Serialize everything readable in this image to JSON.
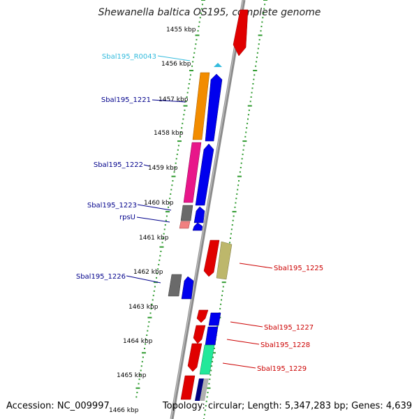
{
  "title": "Shewanella baltica OS195, complete genome",
  "footer": {
    "accession": "Accession: NC_009997",
    "summary": "Topology: circular; Length: 5,347,283 bp; Genes: 4,639"
  },
  "ruler": {
    "unit": "kbp",
    "ticks": [
      "1455 kbp",
      "1456 kbp",
      "1457 kbp",
      "1458 kbp",
      "1459 kbp",
      "1460 kbp",
      "1461 kbp",
      "1462 kbp",
      "1463 kbp",
      "1464 kbp",
      "1465 kbp",
      "1466 kbp"
    ]
  },
  "colors": {
    "backbone": "#8c8c8c",
    "dotted_guide": "#2e9a2e",
    "label_left": "#00008b",
    "label_right": "#cc0000",
    "label_rna": "#33bbdd"
  },
  "labels": {
    "left": [
      "Sbal195_R0043",
      "Sbal195_1221",
      "Sbal195_1222",
      "Sbal195_1223",
      "rpsU",
      "Sbal195_1226"
    ],
    "right": [
      "Sbal195_1225",
      "Sbal195_1227",
      "Sbal195_1228",
      "Sbal195_1229"
    ]
  }
}
